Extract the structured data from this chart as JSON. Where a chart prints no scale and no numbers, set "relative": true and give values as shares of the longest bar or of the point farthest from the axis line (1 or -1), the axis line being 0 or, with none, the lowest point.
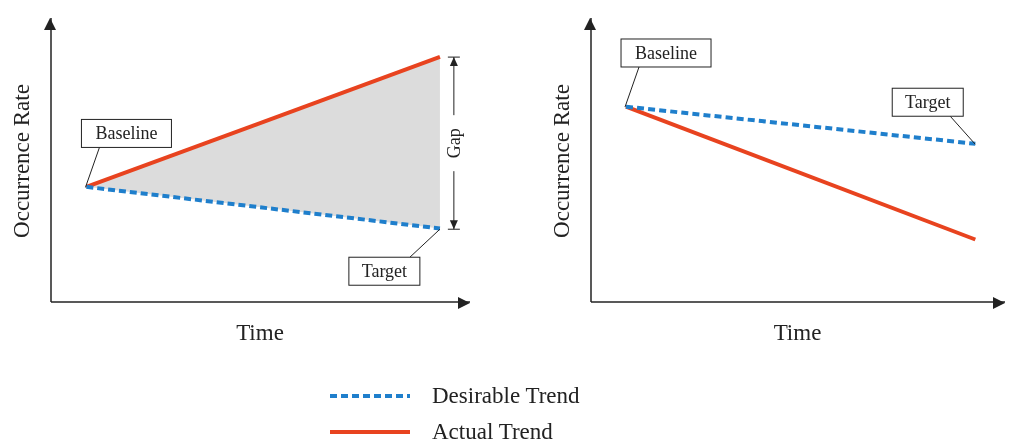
{
  "chart_data": [
    {
      "type": "line",
      "relative": true,
      "xlabel": "Time",
      "ylabel": "Occurrence Rate",
      "categories": [
        null,
        null
      ],
      "grid": false,
      "legend": "bottom",
      "marker": "none",
      "series": [
        {
          "name": "Desirable Trend",
          "color": "#1f7fcc",
          "values": [
            0.47,
            0.3
          ],
          "line_style": "dashed"
        },
        {
          "name": "Actual Trend",
          "color": "#e8431f",
          "values": [
            0.47,
            1
          ],
          "line_style": "solid",
          "lower": [
            0.47,
            0.3
          ],
          "upper": [
            0.47,
            1
          ]
        }
      ],
      "annotations": [
        {
          "text": "Baseline",
          "y": 0.47
        },
        {
          "text": "Target",
          "y": 0.3
        },
        "Gap"
      ]
    },
    {
      "type": "line",
      "relative": true,
      "xlabel": "Time",
      "ylabel": "Occurrence Rate",
      "categories": [
        null,
        null
      ],
      "grid": false,
      "legend": "bottom",
      "marker": "none",
      "series": [
        {
          "name": "Desirable Trend",
          "color": "#1f7fcc",
          "values": [
            1,
            0.81
          ],
          "line_style": "dashed"
        },
        {
          "name": "Actual Trend",
          "color": "#e8431f",
          "values": [
            1,
            0.32
          ],
          "line_style": "solid"
        }
      ],
      "annotations": [
        {
          "text": "Baseline",
          "y": 1
        },
        {
          "text": "Target",
          "y": 0.81
        }
      ]
    }
  ]
}
